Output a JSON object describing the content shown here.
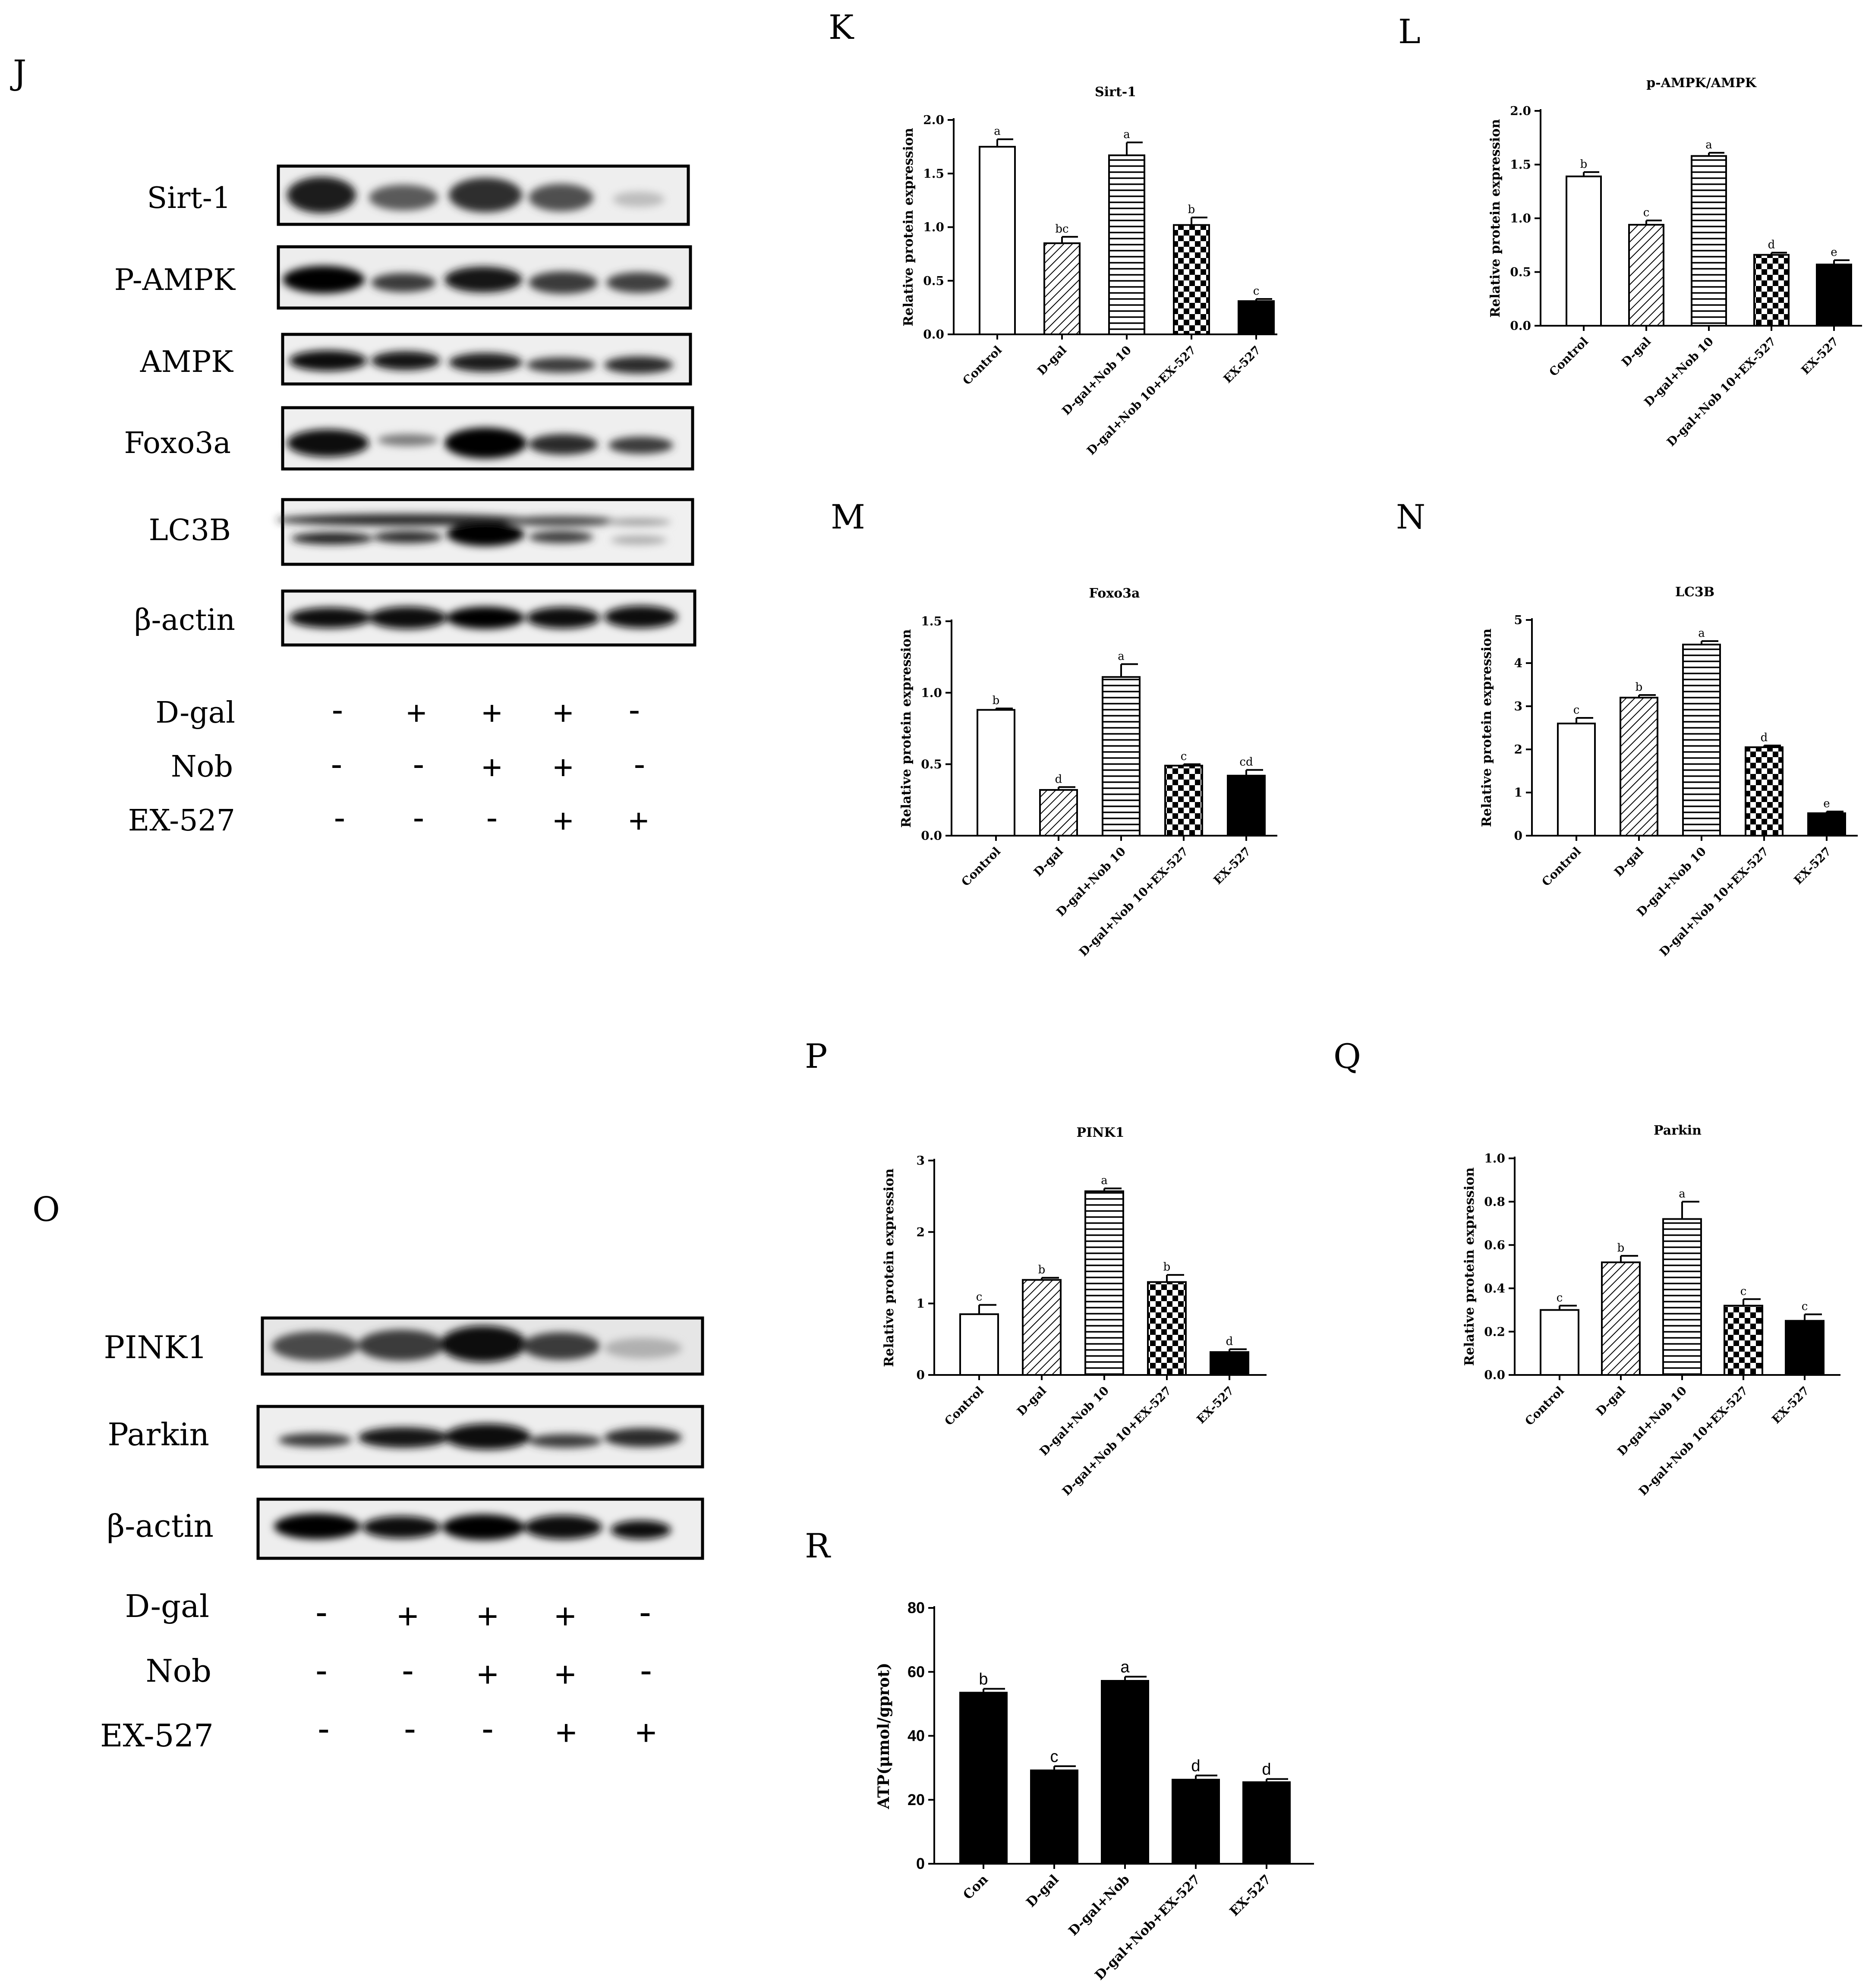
{
  "panel_letters": [
    "J",
    "K",
    "L",
    "M",
    "N",
    "O",
    "P",
    "Q",
    "R"
  ],
  "blot_J": {
    "bands": [
      "Sirt-1",
      "P-AMPK",
      "AMPK",
      "Foxo3a",
      "LC3B",
      "β-actin"
    ],
    "conditions": [
      {
        "label": "D-gal",
        "signs": [
          "-",
          "+",
          "+",
          "+",
          "-"
        ]
      },
      {
        "label": "Nob",
        "signs": [
          "-",
          "-",
          "+",
          "+",
          "-"
        ]
      },
      {
        "label": "EX-527",
        "signs": [
          "-",
          "-",
          "-",
          "+",
          "+"
        ]
      }
    ]
  },
  "blot_O": {
    "bands": [
      "PINK1",
      "Parkin",
      "β-actin"
    ],
    "conditions": [
      {
        "label": "D-gal",
        "signs": [
          "-",
          "+",
          "+",
          "+",
          "-"
        ]
      },
      {
        "label": "Nob",
        "signs": [
          "-",
          "-",
          "+",
          "+",
          "-"
        ]
      },
      {
        "label": "EX-527",
        "signs": [
          "-",
          "-",
          "-",
          "+",
          "+"
        ]
      }
    ]
  },
  "chart_data": [
    {
      "panel": "K",
      "type": "bar",
      "title": "Sirt-1",
      "ylabel": "Relative protein expression",
      "xlabel": "",
      "categories": [
        "Control",
        "D-gal",
        "D-gal+Nob 10",
        "D-gal+Nob 10+EX-527",
        "EX-527"
      ],
      "values": [
        1.75,
        0.85,
        1.67,
        1.02,
        0.31
      ],
      "errors": [
        0.07,
        0.06,
        0.12,
        0.07,
        0.02
      ],
      "letters": [
        "a",
        "bc",
        "a",
        "b",
        "c"
      ],
      "ylim": [
        0,
        2.0
      ],
      "ticks": [
        "0.0",
        "0.5",
        "1.0",
        "1.5",
        "2.0"
      ],
      "tick_values": [
        0,
        0.5,
        1.0,
        1.5,
        2.0
      ],
      "patterns": [
        "white",
        "diag",
        "horiz",
        "checker",
        "black"
      ]
    },
    {
      "panel": "L",
      "type": "bar",
      "title": "p-AMPK/AMPK",
      "ylabel": "Relative protein expression",
      "xlabel": "",
      "categories": [
        "Control",
        "D-gal",
        "D-gal+Nob 10",
        "D-gal+Nob 10+EX-527",
        "EX-527"
      ],
      "values": [
        1.39,
        0.94,
        1.58,
        0.66,
        0.57
      ],
      "errors": [
        0.04,
        0.04,
        0.03,
        0.02,
        0.04
      ],
      "letters": [
        "b",
        "c",
        "a",
        "d",
        "e"
      ],
      "ylim": [
        0,
        2.0
      ],
      "ticks": [
        "0.0",
        "0.5",
        "1.0",
        "1.5",
        "2.0"
      ],
      "tick_values": [
        0,
        0.5,
        1.0,
        1.5,
        2.0
      ],
      "patterns": [
        "white",
        "diag",
        "horiz",
        "checker",
        "black"
      ]
    },
    {
      "panel": "M",
      "type": "bar",
      "title": "Foxo3a",
      "ylabel": "Relative protein expression",
      "xlabel": "",
      "categories": [
        "Control",
        "D-gal",
        "D-gal+Nob 10",
        "D-gal+Nob 10+EX-527",
        "EX-527"
      ],
      "values": [
        0.88,
        0.32,
        1.11,
        0.49,
        0.42
      ],
      "errors": [
        0.01,
        0.02,
        0.09,
        0.01,
        0.04
      ],
      "letters": [
        "b",
        "d",
        "a",
        "c",
        "cd"
      ],
      "ylim": [
        0,
        1.5
      ],
      "ticks": [
        "0.0",
        "0.5",
        "1.0",
        "1.5"
      ],
      "tick_values": [
        0,
        0.5,
        1.0,
        1.5
      ],
      "patterns": [
        "white",
        "diag",
        "horiz",
        "checker",
        "black"
      ]
    },
    {
      "panel": "N",
      "type": "bar",
      "title": "LC3B",
      "ylabel": "Relative protein expression",
      "xlabel": "",
      "categories": [
        "Control",
        "D-gal",
        "D-gal+Nob 10",
        "D-gal+Nob 10+EX-527",
        "EX-527"
      ],
      "values": [
        2.6,
        3.2,
        4.43,
        2.05,
        0.52
      ],
      "errors": [
        0.13,
        0.06,
        0.08,
        0.04,
        0.04
      ],
      "letters": [
        "c",
        "b",
        "a",
        "d",
        "e"
      ],
      "ylim": [
        0,
        5
      ],
      "ticks": [
        "0",
        "1",
        "2",
        "3",
        "4",
        "5"
      ],
      "tick_values": [
        0,
        1,
        2,
        3,
        4,
        5
      ],
      "patterns": [
        "white",
        "diag",
        "horiz",
        "checker",
        "black"
      ]
    },
    {
      "panel": "P",
      "type": "bar",
      "title": "PINK1",
      "ylabel": "Relative protein expression",
      "xlabel": "",
      "categories": [
        "Control",
        "D-gal",
        "D-gal+Nob 10",
        "D-gal+Nob 10+EX-527",
        "EX-527"
      ],
      "values": [
        0.85,
        1.33,
        2.57,
        1.3,
        0.32
      ],
      "errors": [
        0.13,
        0.03,
        0.04,
        0.1,
        0.04
      ],
      "letters": [
        "c",
        "b",
        "a",
        "b",
        "d"
      ],
      "ylim": [
        0,
        3
      ],
      "ticks": [
        "0",
        "1",
        "2",
        "3"
      ],
      "tick_values": [
        0,
        1,
        2,
        3
      ],
      "patterns": [
        "white",
        "diag",
        "horiz",
        "checker",
        "black"
      ]
    },
    {
      "panel": "Q",
      "type": "bar",
      "title": "Parkin",
      "ylabel": "Relative protein expression",
      "xlabel": "",
      "categories": [
        "Control",
        "D-gal",
        "D-gal+Nob 10",
        "D-gal+Nob 10+EX-527",
        "EX-527"
      ],
      "values": [
        0.3,
        0.52,
        0.72,
        0.32,
        0.25
      ],
      "errors": [
        0.02,
        0.03,
        0.08,
        0.03,
        0.03
      ],
      "letters": [
        "c",
        "b",
        "a",
        "c",
        "c"
      ],
      "ylim": [
        0,
        1.0
      ],
      "ticks": [
        "0.0",
        "0.2",
        "0.4",
        "0.6",
        "0.8",
        "1.0"
      ],
      "tick_values": [
        0,
        0.2,
        0.4,
        0.6,
        0.8,
        1.0
      ],
      "patterns": [
        "white",
        "diag",
        "horiz",
        "checker",
        "black"
      ]
    },
    {
      "panel": "R",
      "type": "bar",
      "title": "",
      "ylabel": "ATP(μmol/gprot)",
      "xlabel": "",
      "categories": [
        "Con",
        "D-gal",
        "D-gal+Nob",
        "D-gal+Nob+EX-527",
        "EX-527"
      ],
      "values": [
        53.5,
        29.2,
        57.2,
        26.3,
        25.5
      ],
      "errors": [
        1.2,
        1.3,
        1.3,
        1.3,
        1.0
      ],
      "letters": [
        "b",
        "c",
        "a",
        "d",
        "d"
      ],
      "ylim": [
        0,
        80
      ],
      "ticks": [
        "0",
        "20",
        "40",
        "60",
        "80"
      ],
      "tick_values": [
        0,
        20,
        40,
        60,
        80
      ],
      "patterns": [
        "black",
        "black",
        "black",
        "black",
        "black"
      ]
    }
  ]
}
